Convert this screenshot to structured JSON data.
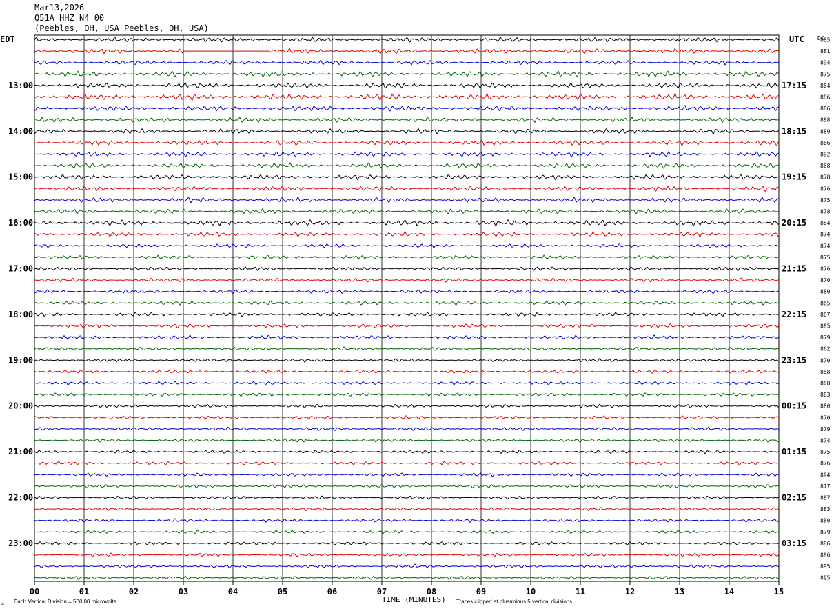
{
  "header": {
    "date": "Mar13,2026",
    "station": "Q51A HHZ N4 00",
    "location": "(Peebles, OH, USA Peebles, OH, USA)"
  },
  "left_axis_label": "EDT",
  "right_axis_label": "UTC",
  "dc_label": "DC",
  "footer": {
    "scale_note": "Each Vertical Division =  500.00 microvolts",
    "clip_note": "Traces clipped at plus/minus 5 vertical divisions",
    "corner_mark": "A"
  },
  "chart_data": {
    "type": "line",
    "title": "",
    "xlabel": "TIME (MINUTES)",
    "ylabel": "",
    "x_ticks": [
      "00",
      "01",
      "02",
      "03",
      "04",
      "05",
      "06",
      "07",
      "08",
      "09",
      "10",
      "11",
      "12",
      "13",
      "14",
      "15"
    ],
    "xlim": [
      0,
      15
    ],
    "grid": "vertical lines each minute",
    "trace_colors": [
      "#000000",
      "#dd0000",
      "#0000cc",
      "#006600"
    ],
    "rows_per_hour": 4,
    "row_count": 48,
    "left_hour_labels": [
      "13:00",
      "14:00",
      "15:00",
      "16:00",
      "17:00",
      "18:00",
      "19:00",
      "20:00",
      "21:00",
      "22:00",
      "23:00"
    ],
    "left_hour_label_rows": [
      4,
      8,
      12,
      16,
      20,
      24,
      28,
      32,
      36,
      40,
      44
    ],
    "right_hour_labels": [
      "17:15",
      "18:15",
      "19:15",
      "20:15",
      "21:15",
      "22:15",
      "23:15",
      "00:15",
      "01:15",
      "02:15",
      "03:15"
    ],
    "dc_values": [
      "885",
      "881",
      "894",
      "875",
      "884",
      "886",
      "886",
      "888",
      "889",
      "886",
      "892",
      "868",
      "878",
      "876",
      "875",
      "878",
      "884",
      "874",
      "874",
      "875",
      "876",
      "870",
      "880",
      "865",
      "867",
      "885",
      "879",
      "862",
      "870",
      "858",
      "868",
      "883",
      "880",
      "870",
      "879",
      "874",
      "875",
      "876",
      "894",
      "877",
      "887",
      "883",
      "880",
      "879",
      "886",
      "886",
      "895",
      "895"
    ],
    "row_amplitude_divisions": [
      0.9,
      0.9,
      0.8,
      1.0,
      1.0,
      1.1,
      1.0,
      0.9,
      0.9,
      0.9,
      0.9,
      0.9,
      0.9,
      0.9,
      0.9,
      0.9,
      1.0,
      0.8,
      0.7,
      0.7,
      0.7,
      0.7,
      0.7,
      0.7,
      0.7,
      0.7,
      0.7,
      0.6,
      0.6,
      0.6,
      0.6,
      0.6,
      0.6,
      0.6,
      0.6,
      0.6,
      0.6,
      0.6,
      0.6,
      0.6,
      0.6,
      0.6,
      0.6,
      0.6,
      0.6,
      0.6,
      0.6,
      0.6
    ],
    "flat_segment": {
      "row": 1,
      "start_minute": 3.0,
      "end_minute": 4.7
    }
  }
}
